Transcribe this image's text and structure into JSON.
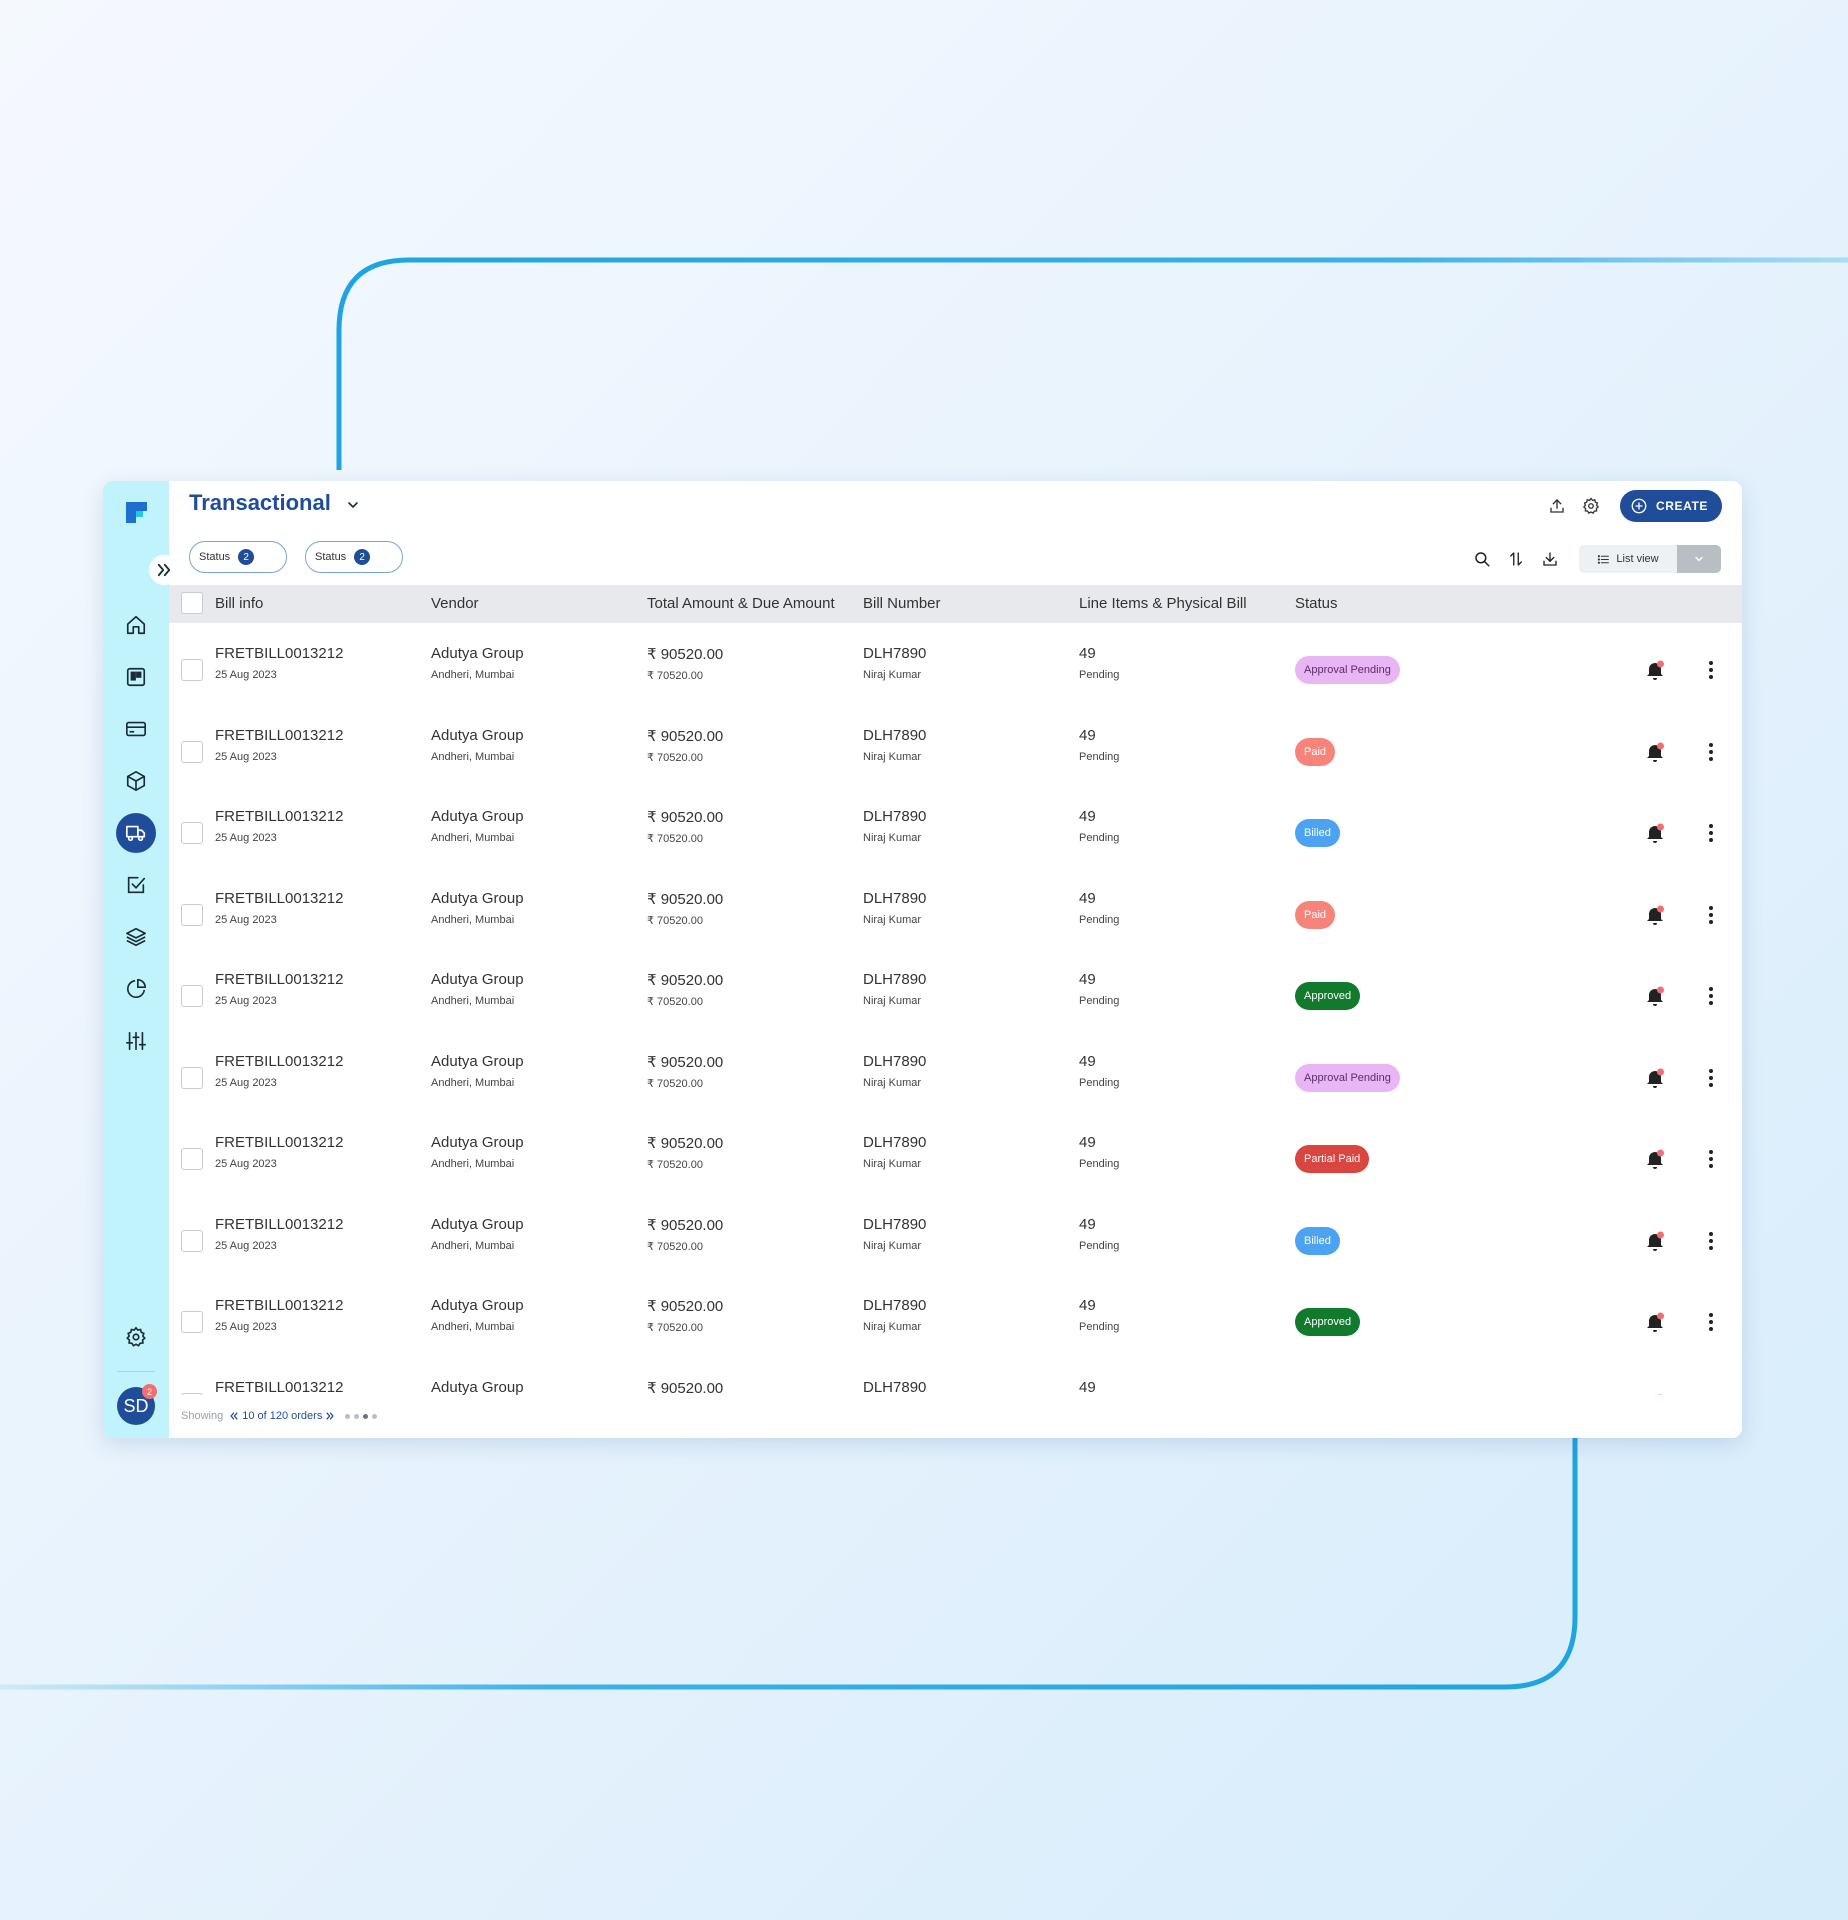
{
  "header": {
    "title": "Transactional",
    "create_label": "CREATE"
  },
  "filters": [
    {
      "label": "Status",
      "count": "2"
    },
    {
      "label": "Status",
      "count": "2"
    }
  ],
  "view": {
    "label": "List view"
  },
  "columns": [
    "Bill info",
    "Vendor",
    "Total Amount & Due Amount",
    "Bill Number",
    "Line Items & Physical Bill",
    "Status"
  ],
  "rows": [
    {
      "bill": "FRETBILL0013212",
      "date": "25 Aug 2023",
      "vendor": "Adutya Group",
      "location": "Andheri, Mumbai",
      "total": "₹ 90520.00",
      "due": "₹ 70520.00",
      "bill_number": "DLH7890",
      "person": "Niraj Kumar",
      "line_items": "49",
      "physical": "Pending",
      "status": "Approval Pending"
    },
    {
      "bill": "FRETBILL0013212",
      "date": "25 Aug 2023",
      "vendor": "Adutya Group",
      "location": "Andheri, Mumbai",
      "total": "₹ 90520.00",
      "due": "₹ 70520.00",
      "bill_number": "DLH7890",
      "person": "Niraj Kumar",
      "line_items": "49",
      "physical": "Pending",
      "status": "Paid"
    },
    {
      "bill": "FRETBILL0013212",
      "date": "25 Aug 2023",
      "vendor": "Adutya Group",
      "location": "Andheri, Mumbai",
      "total": "₹ 90520.00",
      "due": "₹ 70520.00",
      "bill_number": "DLH7890",
      "person": "Niraj Kumar",
      "line_items": "49",
      "physical": "Pending",
      "status": "Billed"
    },
    {
      "bill": "FRETBILL0013212",
      "date": "25 Aug 2023",
      "vendor": "Adutya Group",
      "location": "Andheri, Mumbai",
      "total": "₹ 90520.00",
      "due": "₹ 70520.00",
      "bill_number": "DLH7890",
      "person": "Niraj Kumar",
      "line_items": "49",
      "physical": "Pending",
      "status": "Paid"
    },
    {
      "bill": "FRETBILL0013212",
      "date": "25 Aug 2023",
      "vendor": "Adutya Group",
      "location": "Andheri, Mumbai",
      "total": "₹ 90520.00",
      "due": "₹ 70520.00",
      "bill_number": "DLH7890",
      "person": "Niraj Kumar",
      "line_items": "49",
      "physical": "Pending",
      "status": "Approved"
    },
    {
      "bill": "FRETBILL0013212",
      "date": "25 Aug 2023",
      "vendor": "Adutya Group",
      "location": "Andheri, Mumbai",
      "total": "₹ 90520.00",
      "due": "₹ 70520.00",
      "bill_number": "DLH7890",
      "person": "Niraj Kumar",
      "line_items": "49",
      "physical": "Pending",
      "status": "Approval Pending"
    },
    {
      "bill": "FRETBILL0013212",
      "date": "25 Aug 2023",
      "vendor": "Adutya Group",
      "location": "Andheri, Mumbai",
      "total": "₹ 90520.00",
      "due": "₹ 70520.00",
      "bill_number": "DLH7890",
      "person": "Niraj Kumar",
      "line_items": "49",
      "physical": "Pending",
      "status": "Partial Paid"
    },
    {
      "bill": "FRETBILL0013212",
      "date": "25 Aug 2023",
      "vendor": "Adutya Group",
      "location": "Andheri, Mumbai",
      "total": "₹ 90520.00",
      "due": "₹ 70520.00",
      "bill_number": "DLH7890",
      "person": "Niraj Kumar",
      "line_items": "49",
      "physical": "Pending",
      "status": "Billed"
    },
    {
      "bill": "FRETBILL0013212",
      "date": "25 Aug 2023",
      "vendor": "Adutya Group",
      "location": "Andheri, Mumbai",
      "total": "₹ 90520.00",
      "due": "₹ 70520.00",
      "bill_number": "DLH7890",
      "person": "Niraj Kumar",
      "line_items": "49",
      "physical": "Pending",
      "status": "Approved"
    },
    {
      "bill": "FRETBILL0013212",
      "date": "",
      "vendor": "Adutya Group",
      "location": "",
      "total": "₹ 90520.00",
      "due": "",
      "bill_number": "DLH7890",
      "person": "",
      "line_items": "49",
      "physical": "",
      "status": ""
    }
  ],
  "status_styles": {
    "Approval Pending": {
      "bg": "#e9b6f5",
      "fg": "#5a2d6b"
    },
    "Paid": {
      "bg": "#f7847a",
      "fg": "#ffffff"
    },
    "Billed": {
      "bg": "#4da3f2",
      "fg": "#ffffff"
    },
    "Approved": {
      "bg": "#117a2d",
      "fg": "#ffffff"
    },
    "Partial Paid": {
      "bg": "#d9453f",
      "fg": "#ffffff"
    }
  },
  "footer": {
    "showing": "Showing",
    "pager": "10 of 120 orders"
  },
  "avatar": {
    "initials": "SD",
    "badge": "2"
  },
  "colors": {
    "accent": "#1f4d9a",
    "sidebar": "#c0f3fb",
    "line": "#1ea4e0"
  },
  "icons": [
    "app-logo-icon",
    "home-icon",
    "board-icon",
    "card-icon",
    "box-icon",
    "truck-icon",
    "checkbox-icon",
    "layers-icon",
    "pie-chart-icon",
    "sliders-icon",
    "gear-icon",
    "upload-icon",
    "search-icon",
    "sort-icon",
    "download-icon",
    "list-icon",
    "bell-icon",
    "more-vertical-icon"
  ]
}
